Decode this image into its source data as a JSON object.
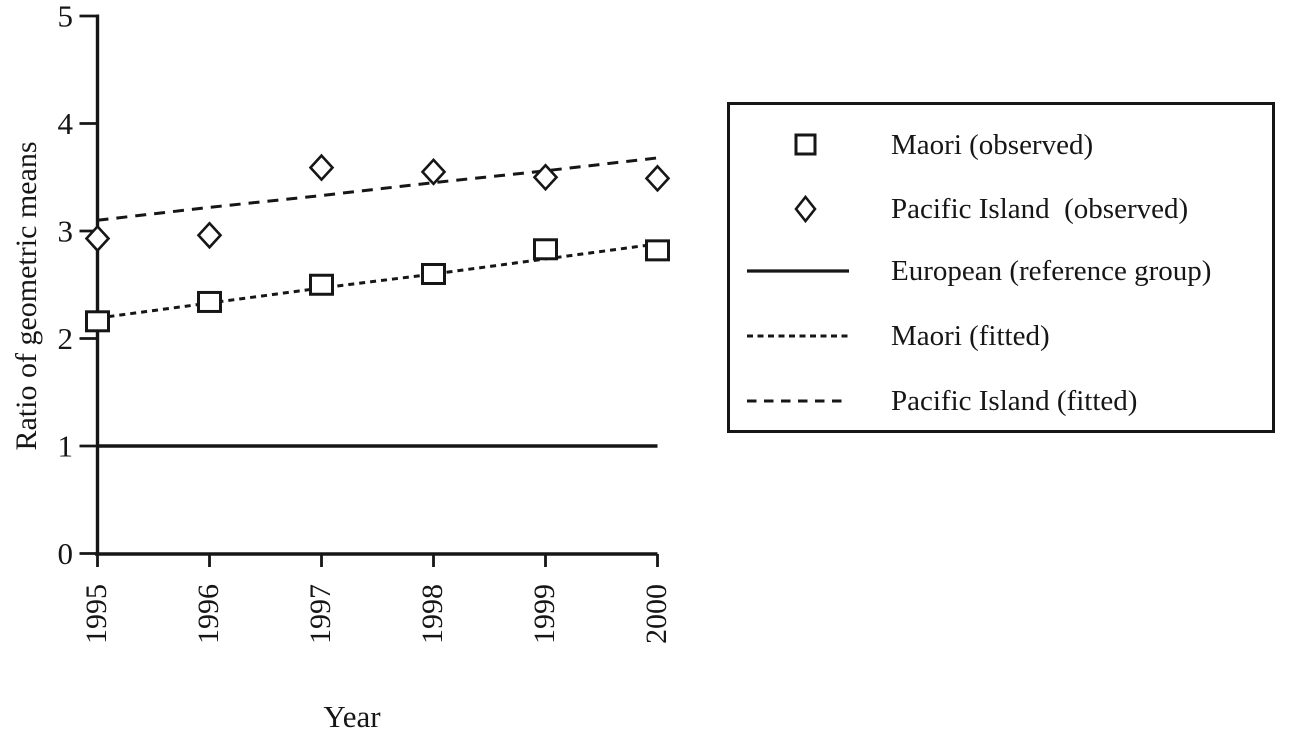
{
  "page": {
    "background_color": "#ffffff",
    "ink_color": "#161616"
  },
  "chart_data": {
    "type": "scatter",
    "title": "",
    "xlabel": "Year",
    "ylabel": "Ratio of geometric means",
    "color": "#161616",
    "x": [
      1995,
      1996,
      1997,
      1998,
      1999,
      2000
    ],
    "xticks": [
      1995,
      1996,
      1997,
      1998,
      1999,
      2000
    ],
    "yticks": [
      0,
      1,
      2,
      3,
      4,
      5
    ],
    "ylim": [
      0,
      5
    ],
    "xlim": [
      1995,
      2000
    ],
    "grid": false,
    "legend_position": "right-outside",
    "series": [
      {
        "name": "Maori (observed)",
        "type": "scatter",
        "marker": "square",
        "values": [
          2.16,
          2.34,
          2.5,
          2.6,
          2.83,
          2.82
        ]
      },
      {
        "name": "Pacific Island  (observed)",
        "type": "scatter",
        "marker": "diamond",
        "values": [
          2.93,
          2.96,
          3.59,
          3.55,
          3.5,
          3.49
        ]
      },
      {
        "name": "European (reference group)",
        "type": "line",
        "style": "solid",
        "values": [
          1,
          1,
          1,
          1,
          1,
          1
        ]
      },
      {
        "name": "Maori (fitted)",
        "type": "line",
        "style": "fine-dashed",
        "values": [
          2.19,
          2.33,
          2.47,
          2.6,
          2.74,
          2.88
        ]
      },
      {
        "name": "Pacific Island (fitted)",
        "type": "line",
        "style": "coarse-dashed",
        "values": [
          3.1,
          3.22,
          3.33,
          3.45,
          3.56,
          3.68
        ]
      }
    ]
  },
  "legend": {
    "items": [
      {
        "symbol": "square-marker-icon",
        "label": "Maori (observed)"
      },
      {
        "symbol": "diamond-marker-icon",
        "label": "Pacific Island  (observed)"
      },
      {
        "symbol": "solid-line-icon",
        "label": "European (reference group)"
      },
      {
        "symbol": "fine-dashed-line-icon",
        "label": "Maori (fitted)"
      },
      {
        "symbol": "coarse-dashed-line-icon",
        "label": "Pacific Island (fitted)"
      }
    ]
  }
}
